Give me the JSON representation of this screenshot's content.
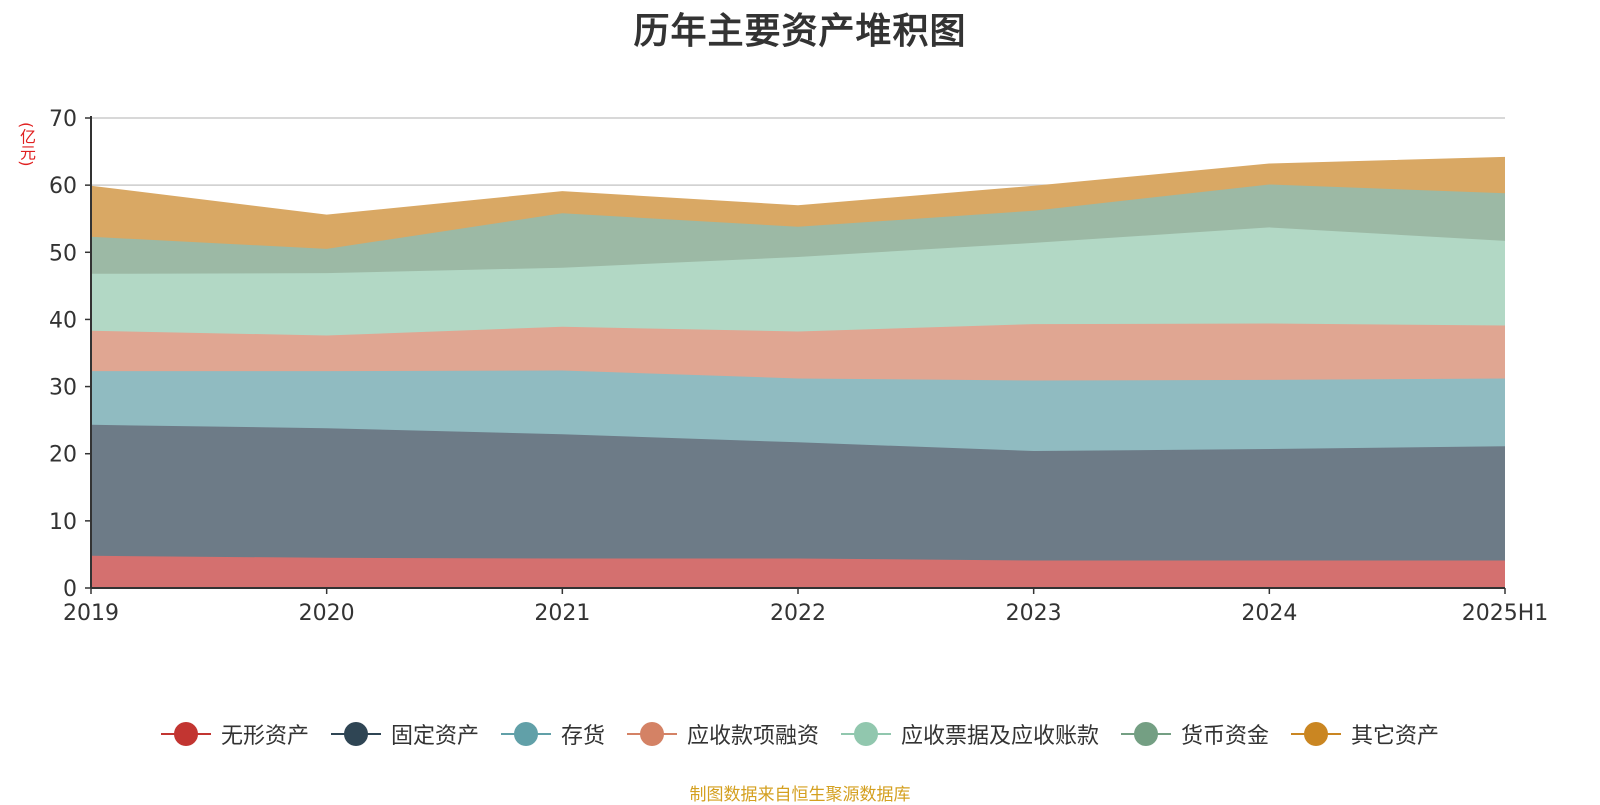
{
  "title": "历年主要资产堆积图",
  "source": "制图数据来自恒生聚源数据库",
  "chart_data": {
    "type": "area",
    "stacked": true,
    "unit_label": "(亿元)",
    "categories": [
      "2019",
      "2020",
      "2021",
      "2022",
      "2023",
      "2024",
      "2025H1"
    ],
    "ylim": [
      0,
      70
    ],
    "yticks": [
      0,
      10,
      20,
      30,
      40,
      50,
      60,
      70
    ],
    "grid": true,
    "legend_position": "bottom",
    "series": [
      {
        "name": "无形资产",
        "color": "#c23531",
        "area_color": "#d4706f",
        "values": [
          4.8,
          4.5,
          4.4,
          4.4,
          4.1,
          4.1,
          4.1
        ]
      },
      {
        "name": "固定资产",
        "color": "#2f4554",
        "area_color": "#6d7b87",
        "values": [
          19.5,
          19.3,
          18.5,
          17.3,
          16.3,
          16.6,
          17.0
        ]
      },
      {
        "name": "存货",
        "color": "#61a0a8",
        "area_color": "#90bbc1",
        "values": [
          8.0,
          8.5,
          9.5,
          9.5,
          10.5,
          10.3,
          10.1
        ]
      },
      {
        "name": "应收款项融资",
        "color": "#d48265",
        "area_color": "#e0a692",
        "values": [
          6.0,
          5.3,
          6.5,
          7.0,
          8.4,
          8.4,
          7.9
        ]
      },
      {
        "name": "应收票据及应收账款",
        "color": "#91c7ae",
        "area_color": "#b2d8c5",
        "values": [
          8.5,
          9.3,
          8.8,
          11.1,
          12.1,
          14.3,
          12.6
        ]
      },
      {
        "name": "货币资金",
        "color": "#749f83",
        "area_color": "#9cb9a5",
        "values": [
          5.5,
          3.6,
          8.1,
          4.5,
          4.8,
          6.4,
          7.1
        ]
      },
      {
        "name": "其它资产",
        "color": "#ca8622",
        "area_color": "#d9a864",
        "values": [
          7.5,
          5.0,
          3.2,
          3.1,
          3.6,
          3.0,
          5.3
        ]
      }
    ]
  }
}
